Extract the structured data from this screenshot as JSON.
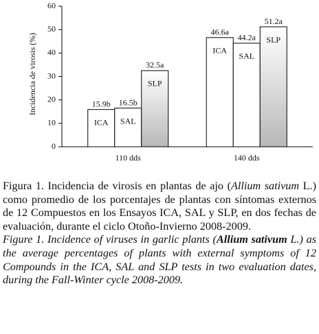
{
  "chart_data": {
    "type": "bar",
    "y_label": "Incidencia de virosis (%)",
    "categories": [
      "110 dds",
      "140 dds"
    ],
    "series": [
      {
        "name": "ICA",
        "color": "#ffffff",
        "values": [
          15.9,
          46.6
        ],
        "value_labels": [
          "15.9b",
          "46.6a"
        ]
      },
      {
        "name": "SAL",
        "color": "#ffffff",
        "values": [
          16.5,
          44.2
        ],
        "value_labels": [
          "16.5b",
          "44.2a"
        ]
      },
      {
        "name": "SLP",
        "color": "#b8b8b8",
        "values": [
          32.5,
          51.2
        ],
        "value_labels": [
          "32.5a",
          "51.2a"
        ]
      }
    ],
    "ylim": [
      0,
      60
    ],
    "yticks": [
      0,
      10,
      20,
      30,
      40,
      50,
      60
    ],
    "grid": false
  },
  "caption": {
    "spanish": [
      {
        "text": "Figura 1. Incidencia de virosis en plantas de ajo (",
        "style": "normal"
      },
      {
        "text": "Allium sativum",
        "style": "italic"
      },
      {
        "text": " L.) como promedio de los porcentajes de plantas con síntomas externos de 12 Compuestos en los Ensayos ICA, SAL y SLP, en dos fechas de evaluación, durante el ciclo Otoño-Invierno 2008-2009.",
        "style": "normal"
      }
    ],
    "english": [
      {
        "text": "Figure 1. Incidence of  viruses in garlic plants (",
        "style": "italic"
      },
      {
        "text": "Allium sativum",
        "style": "bold-italic"
      },
      {
        "text": " L.) as the average percentages of plants with external symptoms of 12 Compounds in the  ICA, SAL and SLP tests in two evaluation dates, during the Fall-Winter cycle 2008-2009.",
        "style": "italic"
      }
    ]
  }
}
